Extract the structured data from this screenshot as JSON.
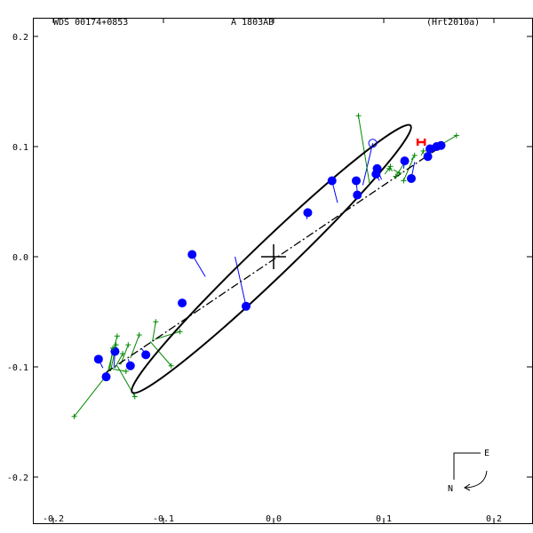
{
  "header": {
    "left": "WDS 00174+0853",
    "center": "A  1803AB",
    "right": "(Hrt2010a)"
  },
  "compass": {
    "east": "E",
    "north": "N"
  },
  "colors": {
    "background": "#ffffff",
    "frame": "#000000",
    "orbit": "#000000",
    "line_of_nodes": "#000000",
    "micrometry": "#008800",
    "speckle": "#0000ff",
    "highlight": "#ff0000"
  },
  "chart_data": {
    "type": "scatter",
    "title": "",
    "xlabel": "",
    "ylabel": "",
    "xlim": [
      -0.2,
      0.2
    ],
    "ylim": [
      -0.2,
      0.2
    ],
    "x_ticks": [
      -0.2,
      -0.1,
      0.0,
      0.1,
      0.2
    ],
    "y_ticks": [
      -0.2,
      -0.1,
      0.0,
      0.1,
      0.2
    ],
    "x_tick_labels": [
      "-0.2",
      "-0.1",
      "0.0",
      "0.1",
      "0.2"
    ],
    "y_tick_labels": [
      "-0.2",
      "-0.1",
      "0.0",
      "0.1",
      "0.2"
    ],
    "grid": false,
    "primary_star": [
      0.0,
      0.0
    ],
    "orbit_ellipse": {
      "center": [
        -0.002,
        -0.002
      ],
      "semi_major": 0.175,
      "semi_minor": 0.0165,
      "angle_deg": 43.8
    },
    "line_of_nodes": [
      [
        -0.152,
        -0.105
      ],
      [
        0.152,
        0.1
      ]
    ],
    "series": [
      {
        "marker": "filled-circle",
        "points": [
          [
            0.152,
            0.101
          ],
          [
            0.148,
            0.1
          ],
          [
            0.142,
            0.098
          ],
          [
            0.14,
            0.091
          ],
          [
            0.125,
            0.071
          ],
          [
            0.119,
            0.087
          ],
          [
            0.094,
            0.08
          ],
          [
            0.093,
            0.075
          ],
          [
            0.076,
            0.056
          ],
          [
            0.075,
            0.069
          ],
          [
            0.053,
            0.069
          ],
          [
            0.031,
            0.04
          ],
          [
            -0.074,
            0.002
          ],
          [
            -0.083,
            -0.042
          ],
          [
            -0.025,
            -0.045
          ],
          [
            -0.116,
            -0.089
          ],
          [
            -0.13,
            -0.099
          ],
          [
            -0.144,
            -0.086
          ],
          [
            -0.152,
            -0.109
          ],
          [
            -0.159,
            -0.093
          ]
        ],
        "orbit_positions": [
          [
            0.153,
            0.099
          ],
          [
            0.149,
            0.098
          ],
          [
            0.144,
            0.096
          ],
          [
            0.142,
            0.094
          ],
          [
            0.128,
            0.086
          ],
          [
            0.118,
            0.08
          ],
          [
            0.098,
            0.07
          ],
          [
            0.096,
            0.069
          ],
          [
            0.078,
            0.059
          ],
          [
            0.076,
            0.058
          ],
          [
            0.058,
            0.049
          ],
          [
            0.03,
            0.034
          ],
          [
            -0.062,
            -0.018
          ],
          [
            -0.083,
            -0.04
          ],
          [
            -0.035,
            0.0
          ],
          [
            -0.12,
            -0.083
          ],
          [
            -0.132,
            -0.093
          ],
          [
            -0.145,
            -0.101
          ],
          [
            -0.153,
            -0.107
          ],
          [
            -0.155,
            -0.101
          ]
        ]
      },
      {
        "marker": "open-circle",
        "points": [
          [
            0.09,
            0.103
          ]
        ],
        "orbit_positions": [
          [
            0.081,
            0.065
          ]
        ]
      },
      {
        "marker": "plus",
        "points": [
          [
            0.166,
            0.11
          ],
          [
            0.077,
            0.128
          ],
          [
            0.106,
            0.082
          ],
          [
            0.114,
            0.076
          ],
          [
            0.128,
            0.092
          ],
          [
            0.136,
            0.096
          ],
          [
            0.105,
            0.08
          ],
          [
            0.111,
            0.073
          ],
          [
            0.118,
            0.069
          ],
          [
            -0.181,
            -0.145
          ],
          [
            -0.126,
            -0.127
          ],
          [
            -0.093,
            -0.099
          ],
          [
            -0.134,
            -0.104
          ],
          [
            -0.143,
            -0.08
          ],
          [
            -0.142,
            -0.072
          ],
          [
            -0.146,
            -0.083
          ],
          [
            -0.122,
            -0.071
          ],
          [
            -0.132,
            -0.08
          ],
          [
            -0.137,
            -0.088
          ],
          [
            -0.107,
            -0.059
          ],
          [
            -0.085,
            -0.068
          ]
        ],
        "orbit_positions": [
          [
            0.149,
            0.1
          ],
          [
            0.087,
            0.067
          ],
          [
            0.101,
            0.075
          ],
          [
            0.109,
            0.079
          ],
          [
            0.125,
            0.088
          ],
          [
            0.134,
            0.092
          ],
          [
            0.108,
            0.078
          ],
          [
            0.118,
            0.084
          ],
          [
            0.127,
            0.09
          ],
          [
            -0.152,
            -0.108
          ],
          [
            -0.142,
            -0.099
          ],
          [
            -0.112,
            -0.077
          ],
          [
            -0.146,
            -0.102
          ],
          [
            -0.148,
            -0.104
          ],
          [
            -0.151,
            -0.106
          ],
          [
            -0.149,
            -0.104
          ],
          [
            -0.13,
            -0.092
          ],
          [
            -0.139,
            -0.098
          ],
          [
            -0.144,
            -0.101
          ],
          [
            -0.11,
            -0.077
          ],
          [
            -0.108,
            -0.075
          ]
        ]
      },
      {
        "marker": "red-h",
        "points": [
          [
            0.134,
            0.104
          ]
        ]
      }
    ]
  }
}
